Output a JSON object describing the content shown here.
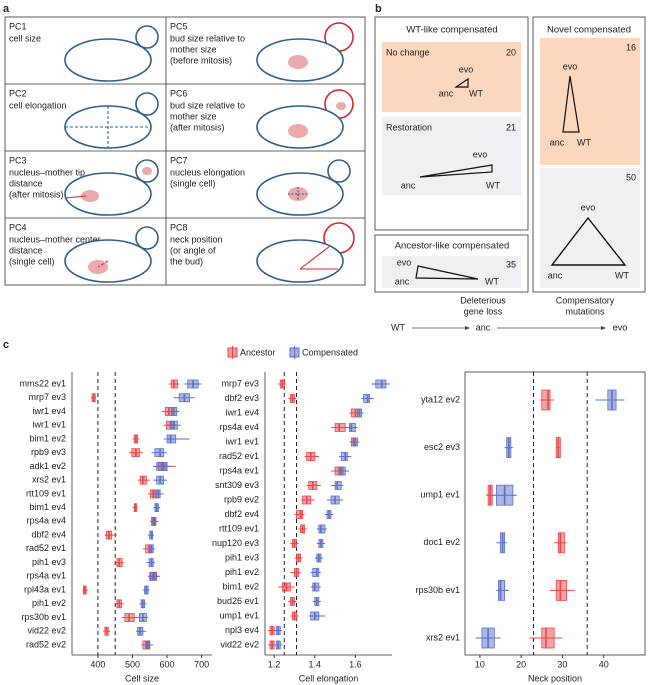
{
  "panel_a": {
    "label": "a",
    "cells": [
      {
        "pc": "PC1",
        "desc": [
          "cell size"
        ]
      },
      {
        "pc": "PC5",
        "desc": [
          "bud size relative to",
          "mother size",
          "(before mitosis)"
        ]
      },
      {
        "pc": "PC2",
        "desc": [
          "cell elongation"
        ]
      },
      {
        "pc": "PC6",
        "desc": [
          "bud size relative to",
          "mother size",
          "(after mitosis)"
        ]
      },
      {
        "pc": "PC3",
        "desc": [
          "nucleus–mother tip",
          "distance",
          "(after mitosis)"
        ]
      },
      {
        "pc": "PC7",
        "desc": [
          "nucleus elongation",
          "(single cell)"
        ]
      },
      {
        "pc": "PC4",
        "desc": [
          "nucleus–mother center",
          "distance",
          "(single cell)"
        ]
      },
      {
        "pc": "PC8",
        "desc": [
          "neck position",
          "(or angle of",
          "the bud)"
        ]
      }
    ]
  },
  "panel_b": {
    "label": "b",
    "wt_like": {
      "title": "WT-like compensated",
      "no_change": {
        "name": "No change",
        "count": "20"
      },
      "restoration": {
        "name": "Restoration",
        "count": "21"
      }
    },
    "ancestor_like": {
      "title": "Ancestor-like compensated",
      "count": "35"
    },
    "novel": {
      "title": "Novel compensated",
      "count_top": "16",
      "count_bottom": "50"
    },
    "vertex": {
      "evo": "evo",
      "anc": "anc",
      "wt": "WT"
    },
    "flow": {
      "wt": "WT",
      "anc": "anc",
      "evo": "evo",
      "step1": [
        "Deleterious",
        "gene loss"
      ],
      "step2": [
        "Compensatory",
        "mutations"
      ]
    }
  },
  "panel_c": {
    "label": "c"
  },
  "chart_data": [
    {
      "type": "box",
      "xlabel": "Cell size",
      "categories": [
        "mms22 ev1",
        "mrp7 ev3",
        "iwr1 ev4",
        "iwr1 ev1",
        "bim1 ev2",
        "rpb9 ev3",
        "adk1 ev2",
        "xrs2 ev1",
        "rtt109 ev1",
        "bim1 ev4",
        "rps4a ev4",
        "dbf2 ev4",
        "rad52 ev1",
        "pih1 ev3",
        "rps4a ev1",
        "rpl43a ev1",
        "pih1 ev2",
        "rps30b ev1",
        "vid22 ev2",
        "rad52 ev2"
      ],
      "series": [
        {
          "name": "Ancestor",
          "color": "#e8474a",
          "values": [
            [
              605,
              612,
              620,
              630,
              635
            ],
            [
              380,
              383,
              388,
              392,
              395
            ],
            [
              585,
              595,
              605,
              615,
              620
            ],
            [
              590,
              598,
              610,
              618,
              625
            ],
            [
              500,
              505,
              510,
              515,
              520
            ],
            [
              490,
              498,
              510,
              520,
              530
            ],
            [
              560,
              575,
              590,
              600,
              625
            ],
            [
              515,
              522,
              530,
              540,
              550
            ],
            [
              545,
              552,
              560,
              570,
              575
            ],
            [
              500,
              505,
              508,
              512,
              515
            ],
            [
              550,
              555,
              562,
              568,
              575
            ],
            [
              420,
              425,
              432,
              440,
              455
            ],
            [
              530,
              538,
              548,
              555,
              560
            ],
            [
              450,
              455,
              462,
              470,
              475
            ],
            [
              545,
              550,
              562,
              570,
              575
            ],
            [
              355,
              358,
              362,
              366,
              370
            ],
            [
              450,
              455,
              462,
              468,
              475
            ],
            [
              470,
              478,
              490,
              505,
              515
            ],
            [
              415,
              420,
              425,
              430,
              435
            ],
            [
              525,
              530,
              540,
              550,
              560
            ]
          ]
        },
        {
          "name": "Compensated",
          "color": "#5b6fc8",
          "values": [
            [
              650,
              660,
              675,
              690,
              700
            ],
            [
              620,
              635,
              650,
              665,
              680
            ],
            [
              605,
              612,
              620,
              628,
              635
            ],
            [
              600,
              610,
              620,
              630,
              640
            ],
            [
              590,
              600,
              610,
              625,
              665
            ],
            [
              555,
              565,
              580,
              590,
              600
            ],
            [
              560,
              570,
              585,
              600,
              610
            ],
            [
              560,
              570,
              580,
              590,
              600
            ],
            [
              560,
              565,
              575,
              580,
              590
            ],
            [
              560,
              565,
              570,
              575,
              580
            ],
            [
              555,
              558,
              562,
              566,
              570
            ],
            [
              545,
              550,
              555,
              558,
              562
            ],
            [
              545,
              550,
              555,
              560,
              565
            ],
            [
              540,
              548,
              555,
              560,
              565
            ],
            [
              545,
              552,
              560,
              568,
              580
            ],
            [
              530,
              535,
              540,
              545,
              550
            ],
            [
              520,
              525,
              530,
              535,
              540
            ],
            [
              510,
              520,
              530,
              540,
              545
            ],
            [
              510,
              515,
              522,
              530,
              540
            ],
            [
              530,
              538,
              545,
              550,
              555
            ]
          ]
        }
      ],
      "reference_lines": [
        400,
        450
      ],
      "xlim": [
        325,
        730
      ],
      "xticks": [
        400,
        500,
        600,
        700
      ]
    },
    {
      "type": "box",
      "xlabel": "Cell elongation",
      "categories": [
        "mrp7 ev3",
        "dbf2 ev3",
        "iwr1 ev4",
        "rps4a ev4",
        "iwr1 ev1",
        "rad52 ev1",
        "rps4a ev1",
        "snt309 ev3",
        "rpb9 ev2",
        "dbf2 ev4",
        "rtt109 ev1",
        "nup120 ev3",
        "pih1 ev3",
        "pih1 ev2",
        "bim1 ev2",
        "bud26 ev1",
        "ump1 ev1",
        "npl3 ev4",
        "vid22 ev2"
      ],
      "series": [
        {
          "color": "#e8474a",
          "values": [
            [
              1.22,
              1.23,
              1.24,
              1.25,
              1.26
            ],
            [
              1.27,
              1.28,
              1.29,
              1.3,
              1.31
            ],
            [
              1.57,
              1.58,
              1.6,
              1.61,
              1.63
            ],
            [
              1.48,
              1.5,
              1.52,
              1.55,
              1.57
            ],
            [
              1.57,
              1.58,
              1.59,
              1.6,
              1.61
            ],
            [
              1.35,
              1.36,
              1.38,
              1.4,
              1.42
            ],
            [
              1.48,
              1.5,
              1.52,
              1.54,
              1.56
            ],
            [
              1.36,
              1.37,
              1.39,
              1.41,
              1.43
            ],
            [
              1.33,
              1.34,
              1.36,
              1.38,
              1.4
            ],
            [
              1.3,
              1.31,
              1.33,
              1.34,
              1.35
            ],
            [
              1.32,
              1.33,
              1.34,
              1.35,
              1.36
            ],
            [
              1.28,
              1.29,
              1.3,
              1.31,
              1.32
            ],
            [
              1.3,
              1.31,
              1.32,
              1.33,
              1.34
            ],
            [
              1.28,
              1.3,
              1.31,
              1.32,
              1.33
            ],
            [
              1.22,
              1.24,
              1.26,
              1.28,
              1.3
            ],
            [
              1.27,
              1.28,
              1.29,
              1.3,
              1.31
            ],
            [
              1.28,
              1.29,
              1.3,
              1.31,
              1.32
            ],
            [
              1.17,
              1.18,
              1.19,
              1.2,
              1.21
            ],
            [
              1.17,
              1.18,
              1.19,
              1.2,
              1.21
            ]
          ]
        },
        {
          "color": "#5b6fc8",
          "values": [
            [
              1.68,
              1.7,
              1.73,
              1.75,
              1.77
            ],
            [
              1.63,
              1.64,
              1.66,
              1.67,
              1.69
            ],
            [
              1.6,
              1.61,
              1.62,
              1.63,
              1.64
            ],
            [
              1.55,
              1.57,
              1.58,
              1.6,
              1.61
            ],
            [
              1.58,
              1.59,
              1.6,
              1.61,
              1.62
            ],
            [
              1.52,
              1.53,
              1.55,
              1.56,
              1.58
            ],
            [
              1.5,
              1.52,
              1.53,
              1.55,
              1.57
            ],
            [
              1.48,
              1.5,
              1.51,
              1.53,
              1.54
            ],
            [
              1.46,
              1.48,
              1.5,
              1.52,
              1.54
            ],
            [
              1.45,
              1.46,
              1.47,
              1.48,
              1.49
            ],
            [
              1.41,
              1.42,
              1.43,
              1.45,
              1.46
            ],
            [
              1.41,
              1.42,
              1.43,
              1.44,
              1.45
            ],
            [
              1.4,
              1.41,
              1.42,
              1.43,
              1.44
            ],
            [
              1.38,
              1.39,
              1.41,
              1.42,
              1.43
            ],
            [
              1.38,
              1.39,
              1.4,
              1.42,
              1.43
            ],
            [
              1.39,
              1.4,
              1.41,
              1.42,
              1.43
            ],
            [
              1.37,
              1.38,
              1.4,
              1.42,
              1.45
            ],
            [
              1.2,
              1.21,
              1.22,
              1.23,
              1.24
            ],
            [
              1.2,
              1.21,
              1.22,
              1.23,
              1.24
            ]
          ]
        }
      ],
      "reference_lines": [
        1.25,
        1.31
      ],
      "xlim": [
        1.155,
        1.78
      ],
      "xticks": [
        {
          "value": 1.2,
          "label": "1.2"
        },
        {
          "value": 1.4,
          "label": "1.4"
        },
        {
          "value": 1.6,
          "label": "1.6"
        }
      ]
    },
    {
      "type": "box",
      "xlabel": "Neck position",
      "categories": [
        "yta12 ev2",
        "esc2 ev3",
        "ump1 ev1",
        "doc1 ev2",
        "rps30b ev1",
        "xrs2 ev1"
      ],
      "series": [
        {
          "color": "#e8474a",
          "values": [
            [
              24.5,
              25,
              26.5,
              27,
              28
            ],
            [
              28.5,
              28.5,
              29,
              29.5,
              29.5
            ],
            [
              11.5,
              12,
              12.5,
              13,
              14
            ],
            [
              28,
              29,
              29.5,
              30.5,
              31
            ],
            [
              27,
              28.5,
              29.5,
              31,
              33
            ],
            [
              22,
              25,
              26,
              28,
              30
            ]
          ]
        },
        {
          "color": "#5b6fc8",
          "values": [
            [
              38,
              41,
              42,
              43,
              45
            ],
            [
              16,
              16.5,
              17,
              17.5,
              18
            ],
            [
              12,
              14,
              16,
              18,
              19
            ],
            [
              14,
              15,
              15.5,
              16,
              16.5
            ],
            [
              14,
              14.5,
              15,
              16,
              17
            ],
            [
              9,
              10.5,
              12,
              13.5,
              15
            ]
          ]
        }
      ],
      "reference_lines": [
        23,
        36
      ],
      "xlim": [
        6.4,
        50
      ],
      "xticks": [
        10,
        20,
        30,
        40
      ]
    }
  ]
}
